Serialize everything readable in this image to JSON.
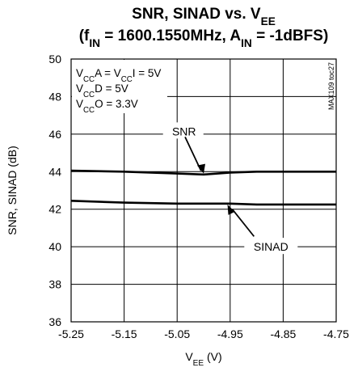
{
  "chart_data": {
    "type": "line",
    "title": {
      "line1": {
        "main": "SNR, SINAD vs. V",
        "sub": "EE"
      },
      "line2": {
        "pre": "(f",
        "sub1": "IN",
        "mid": " = 1600.1550MHz, A",
        "sub2": "IN",
        "post": " = -1dBFS)"
      }
    },
    "xlabel": {
      "main": "V",
      "sub": "EE",
      "post": " (V)"
    },
    "ylabel": "SNR, SINAD (dB)",
    "xlim": [
      -5.25,
      -4.75
    ],
    "ylim": [
      36,
      50
    ],
    "x_ticks": [
      "-5.25",
      "-5.15",
      "-5.05",
      "-4.95",
      "-4.85",
      "-4.75"
    ],
    "y_ticks": [
      "36",
      "38",
      "40",
      "42",
      "44",
      "46",
      "48",
      "50"
    ],
    "grid": true,
    "series": [
      {
        "name": "SNR",
        "x": [
          -5.25,
          -5.15,
          -5.05,
          -5.0,
          -4.95,
          -4.9,
          -4.85,
          -4.75
        ],
        "y": [
          44.05,
          44.0,
          43.9,
          43.85,
          43.95,
          44.0,
          44.0,
          44.0
        ]
      },
      {
        "name": "SINAD",
        "x": [
          -5.25,
          -5.15,
          -5.05,
          -4.95,
          -4.9,
          -4.85,
          -4.75
        ],
        "y": [
          42.45,
          42.35,
          42.3,
          42.3,
          42.25,
          42.25,
          42.25
        ]
      }
    ],
    "conditions": [
      {
        "pre": "V",
        "sub1": "CC",
        "mid": "A = V",
        "sub2": "CC",
        "post": "I = 5V"
      },
      {
        "pre": "V",
        "sub1": "CC",
        "mid": "D = 5V",
        "sub2": "",
        "post": ""
      },
      {
        "pre": "V",
        "sub1": "CC",
        "mid": "O = 3.3V",
        "sub2": "",
        "post": ""
      }
    ],
    "part_number": "MAX109 toc27",
    "annotations": [
      {
        "label": "SNR",
        "series": "SNR"
      },
      {
        "label": "SINAD",
        "series": "SINAD"
      }
    ]
  }
}
